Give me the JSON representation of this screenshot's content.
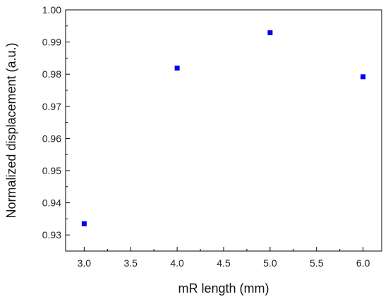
{
  "chart_data": {
    "type": "scatter",
    "xlabel": "mR length (mm)",
    "ylabel": "Normalized displacement (a.u.)",
    "xlim": [
      2.8,
      6.2
    ],
    "ylim": [
      0.925,
      1.0
    ],
    "xticks": [
      3.0,
      3.5,
      4.0,
      4.5,
      5.0,
      5.5,
      6.0
    ],
    "xtick_labels": [
      "3.0",
      "3.5",
      "4.0",
      "4.5",
      "5.0",
      "5.5",
      "6.0"
    ],
    "yticks": [
      0.93,
      0.94,
      0.95,
      0.96,
      0.97,
      0.98,
      0.99,
      1.0
    ],
    "ytick_labels": [
      "0.93",
      "0.94",
      "0.95",
      "0.96",
      "0.97",
      "0.98",
      "0.99",
      "1.00"
    ],
    "grid": false,
    "series": [
      {
        "marker": "square",
        "color": "#0000ee",
        "points": [
          {
            "x": 3.0,
            "y": 0.9335
          },
          {
            "x": 4.0,
            "y": 0.9819
          },
          {
            "x": 5.0,
            "y": 0.9929
          },
          {
            "x": 6.0,
            "y": 0.9792
          }
        ]
      }
    ]
  }
}
